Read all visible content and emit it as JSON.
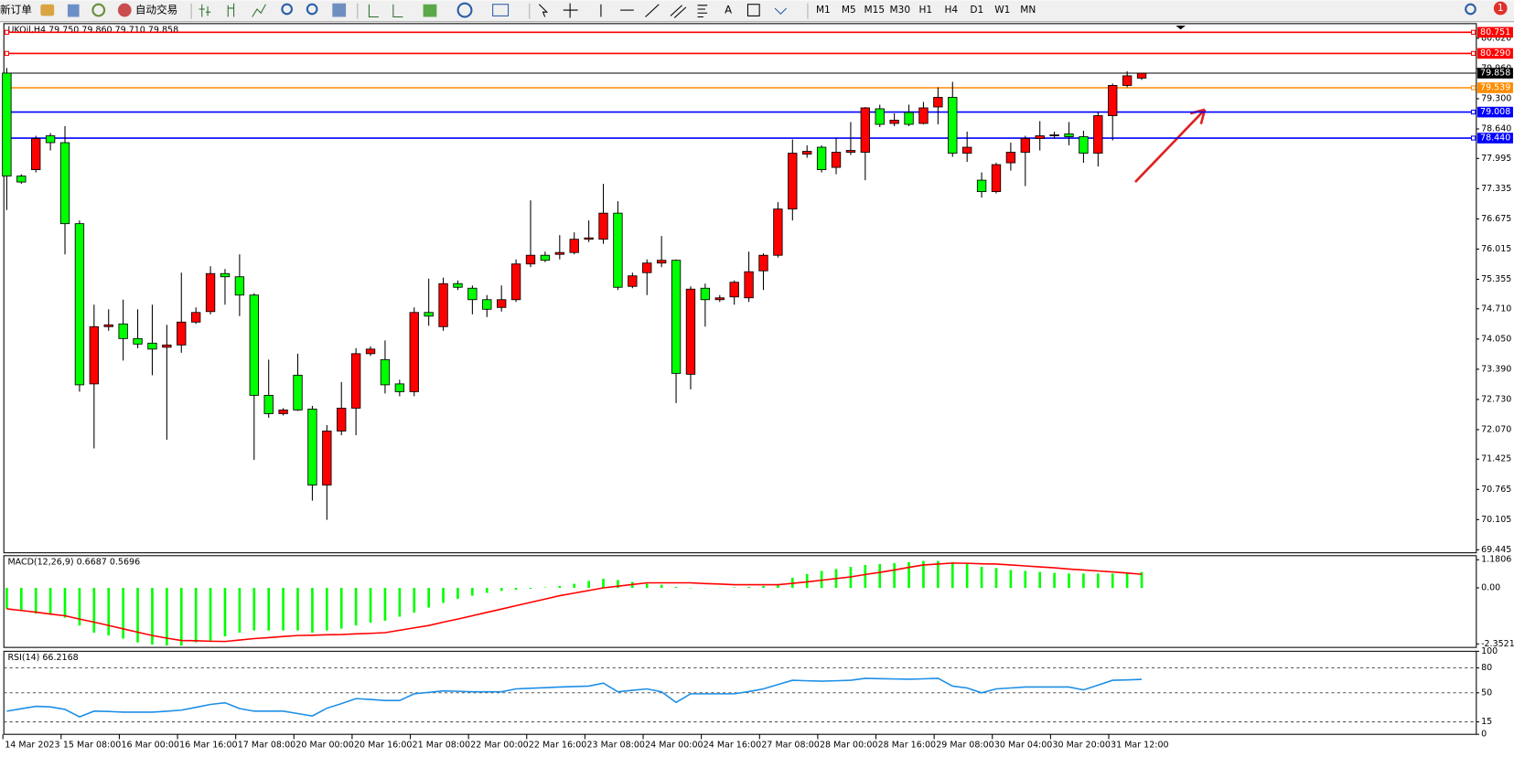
{
  "toolbar": {
    "new_order": "新订单",
    "auto_trading": "自动交易",
    "text_tool": "A",
    "timeframes": [
      "M1",
      "M5",
      "M15",
      "M30",
      "H1",
      "H4",
      "D1",
      "W1",
      "MN"
    ],
    "notification": 1
  },
  "chart_data": [
    {
      "type": "candlestick",
      "title": "UKOil,H4  79.750 79.860 79.710 79.858",
      "categories": [
        "14 Mar 2023",
        null,
        null,
        null,
        "15 Mar 08:00",
        null,
        null,
        null,
        "16 Mar 00:00",
        null,
        null,
        null,
        "16 Mar 16:00",
        null,
        null,
        null,
        "17 Mar 08:00",
        null,
        null,
        null,
        "20 Mar 00:00",
        null,
        null,
        null,
        "20 Mar 16:00",
        null,
        null,
        null,
        "21 Mar 08:00",
        null,
        null,
        null,
        "22 Mar 00:00",
        null,
        null,
        null,
        "22 Mar 16:00",
        null,
        null,
        null,
        "23 Mar 08:00",
        null,
        null,
        null,
        "24 Mar 00:00",
        null,
        null,
        null,
        "24 Mar 16:00",
        null,
        null,
        null,
        "27 Mar 08:00",
        null,
        null,
        null,
        "28 Mar 00:00",
        null,
        null,
        null,
        "28 Mar 16:00",
        null,
        null,
        null,
        "29 Mar 08:00",
        null,
        null,
        null,
        "30 Mar 04:00",
        null,
        null,
        null,
        "30 Mar 20:00",
        null,
        null,
        null,
        "31 Mar 12:00",
        null,
        null
      ],
      "open": [
        79.86,
        77.61,
        77.75,
        78.49,
        78.34,
        76.57,
        73.07,
        74.32,
        74.38,
        74.06,
        73.96,
        73.87,
        73.92,
        74.42,
        74.65,
        75.48,
        75.41,
        75.01,
        72.82,
        72.42,
        73.26,
        72.52,
        70.86,
        72.04,
        72.54,
        73.73,
        73.6,
        73.07,
        72.9,
        74.63,
        74.32,
        75.26,
        75.16,
        74.91,
        74.74,
        74.91,
        75.69,
        75.88,
        75.9,
        75.94,
        76.23,
        76.23,
        76.8,
        75.2,
        75.5,
        75.71,
        75.77,
        73.28,
        75.16,
        74.91,
        74.97,
        74.95,
        75.54,
        75.88,
        76.89,
        78.09,
        78.24,
        77.8,
        78.13,
        78.13,
        79.08,
        78.76,
        79.0,
        78.76,
        79.12,
        79.33,
        78.11,
        77.52,
        77.27,
        77.9,
        78.13,
        78.43,
        78.49,
        78.53,
        78.47,
        78.11,
        78.93,
        79.59,
        79.75
      ],
      "high": [
        79.97,
        77.65,
        78.49,
        78.55,
        78.7,
        76.64,
        74.8,
        74.7,
        74.91,
        74.7,
        74.8,
        74.36,
        75.5,
        74.74,
        75.64,
        75.58,
        75.9,
        75.05,
        73.6,
        72.54,
        73.73,
        72.59,
        72.17,
        73.11,
        73.85,
        73.89,
        74.02,
        73.16,
        74.74,
        75.37,
        75.39,
        75.33,
        75.22,
        75.01,
        75.22,
        75.79,
        77.08,
        75.96,
        76.32,
        76.38,
        76.64,
        77.44,
        77.06,
        75.5,
        75.79,
        76.3,
        75.79,
        75.2,
        75.26,
        75.01,
        75.33,
        75.96,
        75.92,
        77.04,
        78.41,
        78.28,
        78.28,
        78.45,
        78.79,
        79.12,
        79.17,
        78.98,
        79.17,
        79.23,
        79.55,
        79.67,
        78.58,
        77.69,
        77.9,
        78.34,
        78.49,
        78.81,
        78.58,
        78.79,
        78.6,
        79.02,
        79.63,
        79.9,
        79.86
      ],
      "low": [
        76.87,
        77.44,
        77.69,
        78.17,
        75.9,
        72.9,
        71.66,
        74.23,
        73.58,
        73.85,
        73.26,
        71.85,
        73.75,
        74.38,
        74.59,
        74.8,
        74.55,
        71.41,
        72.33,
        72.38,
        72.48,
        70.52,
        70.1,
        71.95,
        71.95,
        73.68,
        72.86,
        72.8,
        72.8,
        74.34,
        74.23,
        75.12,
        74.59,
        74.53,
        74.65,
        74.86,
        75.62,
        75.73,
        75.79,
        75.9,
        76.17,
        76.13,
        75.12,
        75.16,
        75.01,
        75.62,
        72.65,
        72.95,
        74.32,
        74.86,
        74.8,
        74.86,
        75.12,
        75.83,
        76.64,
        78.01,
        77.69,
        77.65,
        78.07,
        77.52,
        78.68,
        78.7,
        78.7,
        78.74,
        78.74,
        78.03,
        77.92,
        77.14,
        77.23,
        77.73,
        77.39,
        78.17,
        78.43,
        78.28,
        77.9,
        77.82,
        78.39,
        79.55,
        79.71
      ],
      "close": [
        77.61,
        77.48,
        78.43,
        78.34,
        76.57,
        73.05,
        74.32,
        74.36,
        74.06,
        73.94,
        73.83,
        73.92,
        74.42,
        74.63,
        75.48,
        75.41,
        75.01,
        72.82,
        72.42,
        72.5,
        72.5,
        70.86,
        72.04,
        72.54,
        73.73,
        73.83,
        73.05,
        72.9,
        74.63,
        74.55,
        75.26,
        75.18,
        74.91,
        74.7,
        74.91,
        75.69,
        75.88,
        75.77,
        75.94,
        76.23,
        76.26,
        76.8,
        75.18,
        75.43,
        75.71,
        75.77,
        73.3,
        75.14,
        74.91,
        74.95,
        75.29,
        75.52,
        75.88,
        76.89,
        78.11,
        78.15,
        77.75,
        78.13,
        78.17,
        79.1,
        78.74,
        78.83,
        78.74,
        79.1,
        79.33,
        78.11,
        78.24,
        77.27,
        77.86,
        78.13,
        78.43,
        78.49,
        78.51,
        78.47,
        78.11,
        78.93,
        79.59,
        79.8,
        79.858
      ],
      "up_color": "#ff0000",
      "down_color": "#00ff00",
      "ylim": [
        69.38,
        80.94
      ],
      "yticks": [
        {
          "value": 80.62,
          "label": "80.620"
        },
        {
          "value": 79.96,
          "label": "79.960"
        },
        {
          "value": 79.3,
          "label": "79.300"
        },
        {
          "value": 78.64,
          "label": "78.640"
        },
        77.995,
        77.335,
        76.675,
        76.015,
        75.355,
        {
          "value": 74.71,
          "label": "74.710"
        },
        {
          "value": 74.05,
          "label": "74.050"
        },
        {
          "value": 73.39,
          "label": "73.390"
        },
        {
          "value": 72.73,
          "label": "72.730"
        },
        {
          "value": 72.07,
          "label": "72.070"
        },
        71.425,
        70.765,
        70.105,
        69.445
      ],
      "levels": [
        {
          "value": 80.751,
          "color": "#ff0000"
        },
        {
          "value": 80.29,
          "label": "80.290",
          "color": "#ff0000"
        },
        {
          "value": 79.858,
          "color": "#000000"
        },
        {
          "value": 79.539,
          "color": "#ff8c00"
        },
        {
          "value": 79.008,
          "color": "#0000ff"
        },
        {
          "value": 78.44,
          "label": "78.440",
          "color": "#0000ff"
        }
      ]
    },
    {
      "type": "macd",
      "title": "MACD(12,26,9) 0.6687 0.5696",
      "histogram": [
        -0.88,
        -0.96,
        -1.08,
        -1.13,
        -1.25,
        -1.58,
        -1.88,
        -2.0,
        -2.13,
        -2.29,
        -2.38,
        -2.42,
        -2.42,
        -2.29,
        -2.21,
        -2.04,
        -1.88,
        -1.79,
        -1.79,
        -1.79,
        -1.79,
        -1.88,
        -1.79,
        -1.71,
        -1.58,
        -1.46,
        -1.38,
        -1.21,
        -1.04,
        -0.83,
        -0.63,
        -0.46,
        -0.33,
        -0.21,
        -0.13,
        -0.08,
        -0.04,
        0.02,
        0.08,
        0.17,
        0.29,
        0.38,
        0.33,
        0.25,
        0.17,
        0.13,
        0.04,
        -0.02,
        -0.01,
        0.01,
        0.02,
        0.04,
        0.08,
        0.13,
        0.42,
        0.58,
        0.71,
        0.79,
        0.88,
        0.96,
        1.0,
        1.04,
        1.08,
        1.13,
        1.13,
        1.08,
        1.0,
        0.88,
        0.83,
        0.75,
        0.71,
        0.67,
        0.63,
        0.6,
        0.6,
        0.6,
        0.6,
        0.62,
        0.6687
      ],
      "signal": [
        -0.88,
        -0.95,
        -1.02,
        -1.1,
        -1.17,
        -1.31,
        -1.44,
        -1.58,
        -1.72,
        -1.86,
        -2.0,
        -2.11,
        -2.21,
        -2.22,
        -2.24,
        -2.25,
        -2.19,
        -2.13,
        -2.09,
        -2.04,
        -2.0,
        -1.99,
        -1.97,
        -1.96,
        -1.93,
        -1.91,
        -1.88,
        -1.78,
        -1.68,
        -1.58,
        -1.44,
        -1.31,
        -1.17,
        -1.03,
        -0.89,
        -0.75,
        -0.61,
        -0.47,
        -0.33,
        -0.22,
        -0.11,
        0,
        0.07,
        0.14,
        0.21,
        0.21,
        0.21,
        0.21,
        0.18,
        0.16,
        0.13,
        0.13,
        0.13,
        0.13,
        0.19,
        0.25,
        0.32,
        0.39,
        0.46,
        0.56,
        0.65,
        0.75,
        0.86,
        0.96,
        1.0,
        1.04,
        1.03,
        1.01,
        1.0,
        0.96,
        0.92,
        0.88,
        0.84,
        0.79,
        0.75,
        0.71,
        0.67,
        0.62,
        0.5696
      ],
      "histogram_color": "#00ff00",
      "signal_color": "#ff0000",
      "ylim": [
        -2.5,
        1.35
      ],
      "yticks": [
        1.1806,
        {
          "value": 0,
          "label": "0.00"
        },
        -2.3521
      ]
    },
    {
      "type": "line",
      "title": "RSI(14) 66.2168",
      "values": [
        27.9,
        30.8,
        33.7,
        33.0,
        30.0,
        21.0,
        27.9,
        27.5,
        26.7,
        26.7,
        26.7,
        27.8,
        29.1,
        32.5,
        36.0,
        38.0,
        31.0,
        27.9,
        27.9,
        27.9,
        25.0,
        22.1,
        31.4,
        37.0,
        43.0,
        42.0,
        40.7,
        40.7,
        48.8,
        50.5,
        52.3,
        51.8,
        51.2,
        51.2,
        51.2,
        54.7,
        55.5,
        56.2,
        57.0,
        57.5,
        58.1,
        61.6,
        51.2,
        53.0,
        54.7,
        51.2,
        38.4,
        48.8,
        48.8,
        48.8,
        48.8,
        51.5,
        54.7,
        60.0,
        65.1,
        64.5,
        64.0,
        64.5,
        65.1,
        67.4,
        67.0,
        66.7,
        66.3,
        66.8,
        67.4,
        58.1,
        55.8,
        50.0,
        54.7,
        55.8,
        57.0,
        57.0,
        57.0,
        57.0,
        53.5,
        59.3,
        65.1,
        65.5,
        66.2168
      ],
      "color": "#1e8fe6",
      "ylim": [
        0,
        100
      ],
      "yticks": [
        100,
        80,
        50,
        15,
        0
      ],
      "levels": [
        80,
        50,
        15
      ]
    }
  ]
}
